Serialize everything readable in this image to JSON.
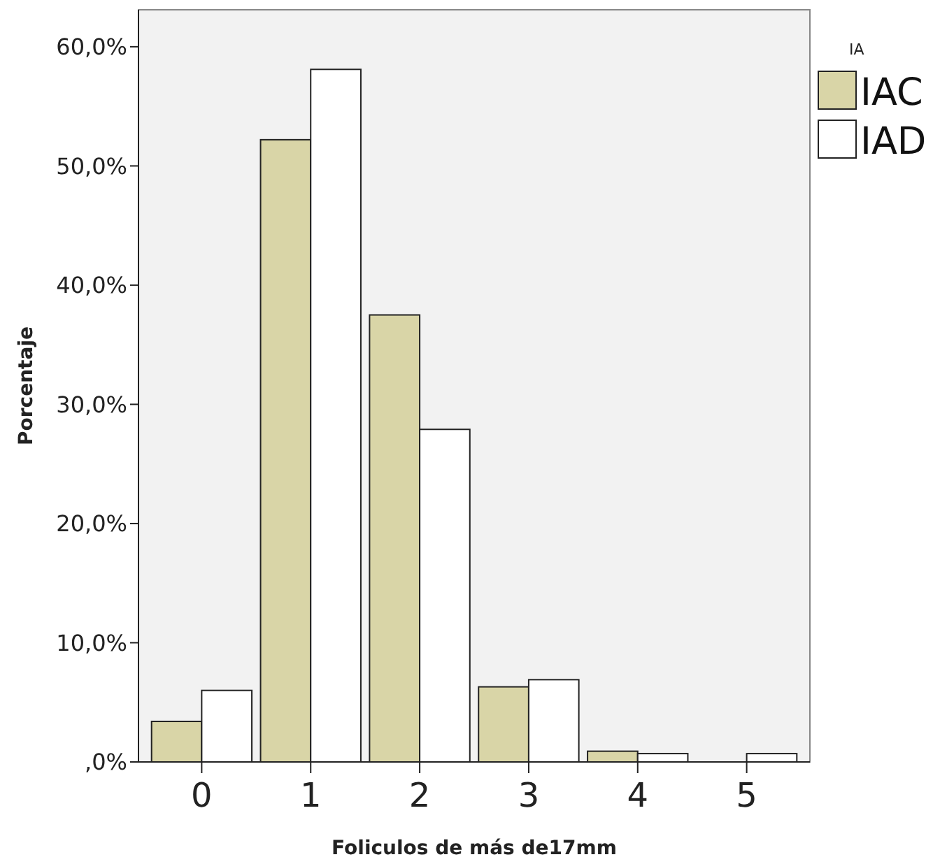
{
  "chart_data": {
    "type": "bar",
    "xlabel": "Foliculos de más de17mm",
    "ylabel": "Porcentaje",
    "legend_title": "IA",
    "categories": [
      "0",
      "1",
      "2",
      "3",
      "4",
      "5"
    ],
    "series": [
      {
        "name": "IAC",
        "color": "#d9d5a7",
        "values": [
          3.4,
          52.2,
          37.5,
          6.3,
          0.9,
          0
        ]
      },
      {
        "name": "IAD",
        "color": "#ffffff",
        "values": [
          6.0,
          58.1,
          27.9,
          6.9,
          0.7,
          0.7
        ]
      }
    ],
    "ylim": [
      0,
      63.1
    ],
    "yticks": [
      {
        "value": 0,
        "label": ",0%"
      },
      {
        "value": 10,
        "label": "10,0%"
      },
      {
        "value": 20,
        "label": "20,0%"
      },
      {
        "value": 30,
        "label": "30,0%"
      },
      {
        "value": 40,
        "label": "40,0%"
      },
      {
        "value": 50,
        "label": "50,0%"
      },
      {
        "value": 60,
        "label": "60,0%"
      }
    ],
    "grid": false,
    "legend": "top right"
  }
}
